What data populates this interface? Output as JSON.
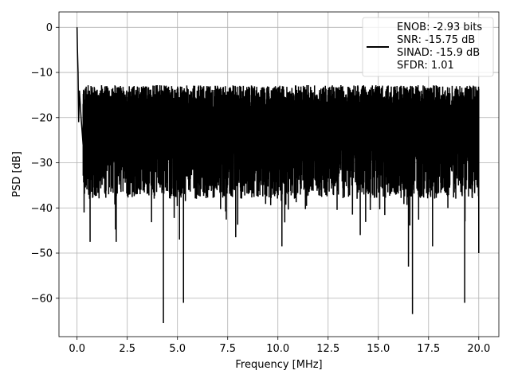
{
  "chart_data": {
    "type": "line",
    "title": "",
    "xlabel": "Frequency [MHz]",
    "ylabel": "PSD [dB]",
    "xlim": [
      -0.9,
      21.0
    ],
    "ylim": [
      -68.5,
      3.4
    ],
    "xticks": [
      0.0,
      2.5,
      5.0,
      7.5,
      10.0,
      12.5,
      15.0,
      17.5,
      20.0
    ],
    "xtick_labels": [
      "0.0",
      "2.5",
      "5.0",
      "7.5",
      "10.0",
      "12.5",
      "15.0",
      "17.5",
      "20.0"
    ],
    "yticks": [
      0,
      -10,
      -20,
      -30,
      -40,
      -50,
      -60
    ],
    "ytick_labels": [
      "0",
      "−10",
      "−20",
      "−30",
      "−40",
      "−50",
      "−60"
    ],
    "grid": true,
    "legend_position": "top-right",
    "line_color": "#000000",
    "legend": {
      "lines": [
        "ENOB: -2.93 bits",
        "SNR: -15.75 dB",
        "SINAD: -15.9 dB",
        "SFDR: 1.01"
      ]
    },
    "series": [
      {
        "x_range": [
          0.0,
          20.0
        ],
        "typical_upper_dB": -16,
        "typical_lower_dB": -37,
        "start_peak": [
          {
            "x": 0.0,
            "y": 0.0
          },
          {
            "x": 0.02,
            "y": -5.0
          },
          {
            "x": 0.05,
            "y": -10.0
          },
          {
            "x": 0.08,
            "y": -21.0
          },
          {
            "x": 0.12,
            "y": -14.0
          },
          {
            "x": 0.2,
            "y": -20.0
          },
          {
            "x": 0.3,
            "y": -26.0
          }
        ],
        "notable_dips": [
          {
            "x": 0.35,
            "y": -41.0
          },
          {
            "x": 0.65,
            "y": -47.5
          },
          {
            "x": 1.95,
            "y": -47.5
          },
          {
            "x": 4.3,
            "y": -65.5
          },
          {
            "x": 5.3,
            "y": -61.0
          },
          {
            "x": 5.1,
            "y": -47.0
          },
          {
            "x": 7.9,
            "y": -46.5
          },
          {
            "x": 10.2,
            "y": -48.5
          },
          {
            "x": 14.1,
            "y": -46.0
          },
          {
            "x": 16.5,
            "y": -53.0
          },
          {
            "x": 16.7,
            "y": -63.5
          },
          {
            "x": 17.7,
            "y": -48.5
          },
          {
            "x": 19.3,
            "y": -61.0
          },
          {
            "x": 20.0,
            "y": -50.0
          }
        ]
      }
    ]
  }
}
